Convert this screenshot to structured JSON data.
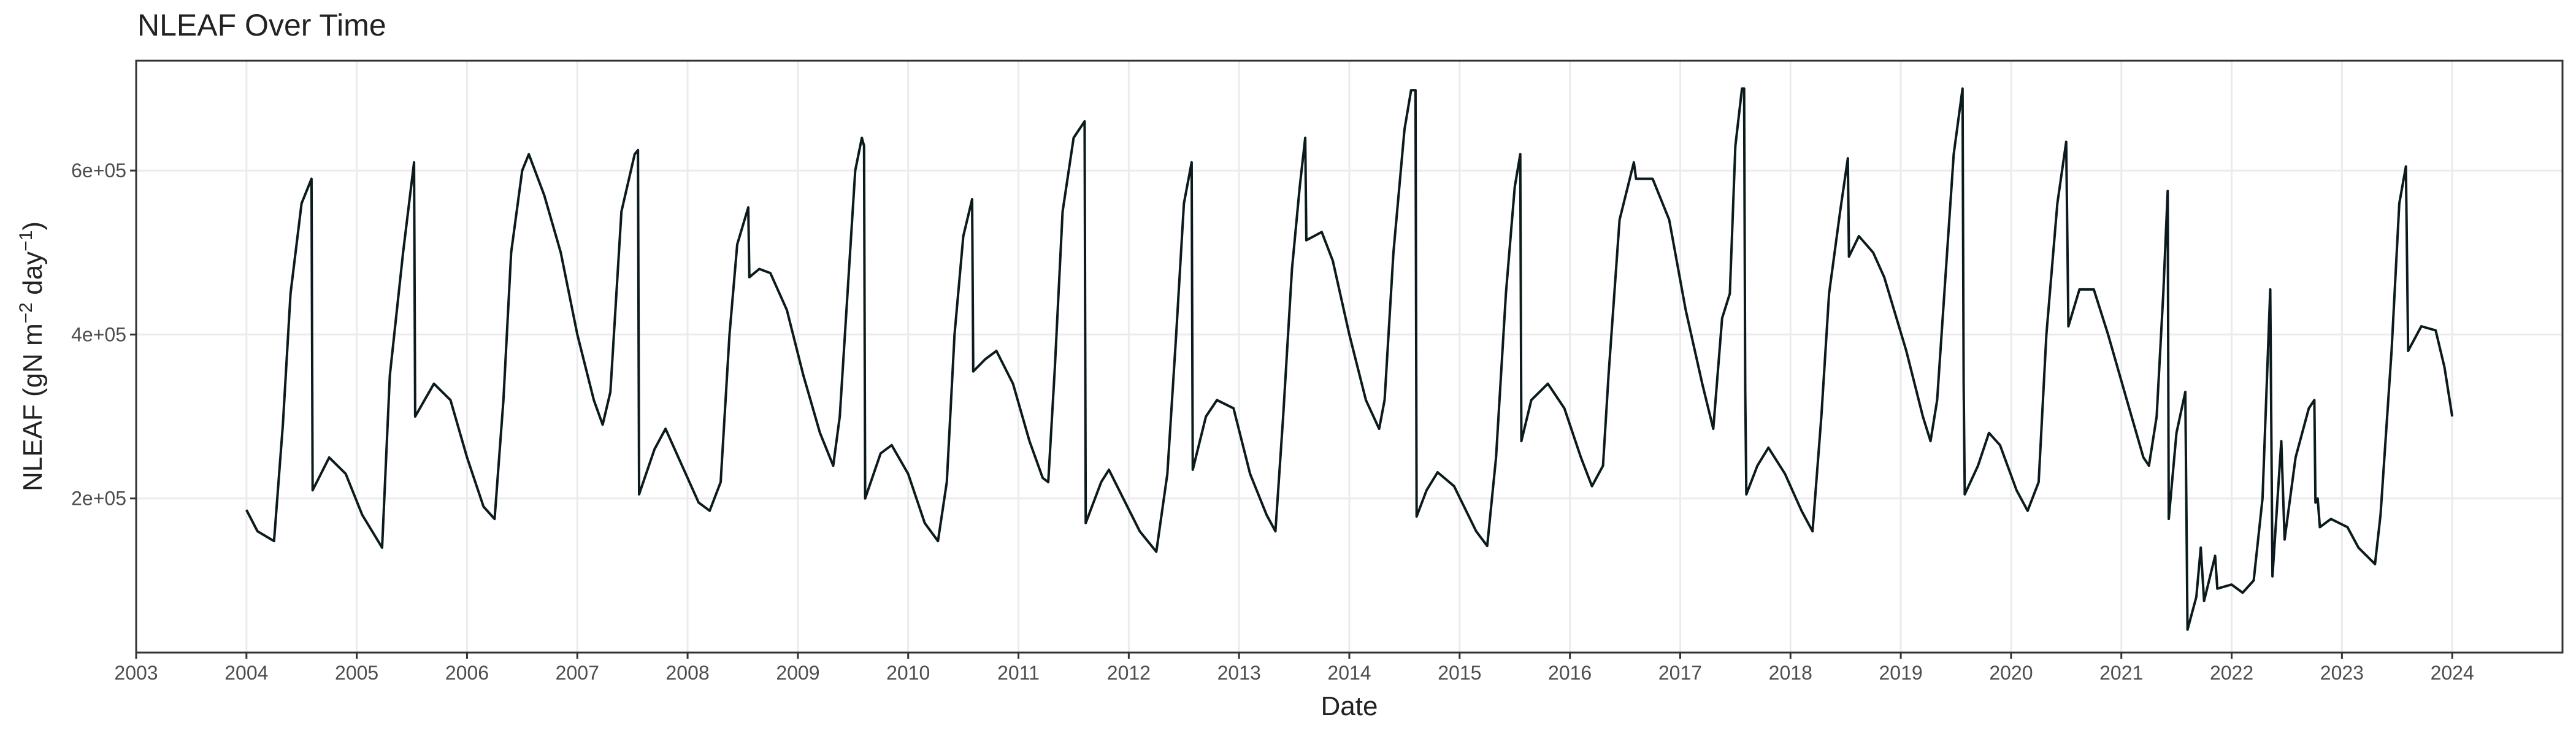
{
  "chart_data": {
    "type": "line",
    "title": "NLEAF Over Time",
    "x_label": "Date",
    "y_label": [
      "NLEAF (gN m",
      "−2",
      " day",
      "−1",
      ")"
    ],
    "color": "#0b1a1c",
    "grid": true,
    "xlim": [
      2003,
      2025
    ],
    "xticks": [
      2003,
      2004,
      2005,
      2006,
      2007,
      2008,
      2009,
      2010,
      2011,
      2012,
      2013,
      2014,
      2015,
      2016,
      2017,
      2018,
      2019,
      2020,
      2021,
      2022,
      2023,
      2024
    ],
    "ylim": [
      12000,
      734000
    ],
    "yticks": [
      {
        "value": 200000,
        "label": "2e+05"
      },
      {
        "value": 400000,
        "label": "4e+05"
      },
      {
        "value": 600000,
        "label": "6e+05"
      }
    ],
    "x": [
      2004.0,
      2004.1,
      2004.2,
      2004.25,
      2004.33,
      2004.4,
      2004.5,
      2004.59,
      2004.6,
      2004.75,
      2004.9,
      2005.05,
      2005.23,
      2005.3,
      2005.42,
      2005.52,
      2005.53,
      2005.7,
      2005.85,
      2006.0,
      2006.15,
      2006.25,
      2006.33,
      2006.4,
      2006.5,
      2006.56,
      2006.7,
      2006.85,
      2007.0,
      2007.15,
      2007.23,
      2007.3,
      2007.4,
      2007.52,
      2007.55,
      2007.56,
      2007.7,
      2007.8,
      2007.95,
      2008.1,
      2008.2,
      2008.3,
      2008.38,
      2008.45,
      2008.55,
      2008.56,
      2008.65,
      2008.75,
      2008.9,
      2009.05,
      2009.2,
      2009.32,
      2009.38,
      2009.45,
      2009.52,
      2009.58,
      2009.6,
      2009.61,
      2009.75,
      2009.85,
      2010.0,
      2010.15,
      2010.27,
      2010.35,
      2010.42,
      2010.5,
      2010.58,
      2010.59,
      2010.7,
      2010.8,
      2010.95,
      2011.1,
      2011.22,
      2011.27,
      2011.33,
      2011.4,
      2011.5,
      2011.6,
      2011.61,
      2011.75,
      2011.82,
      2011.95,
      2012.1,
      2012.25,
      2012.35,
      2012.43,
      2012.5,
      2012.57,
      2012.58,
      2012.7,
      2012.8,
      2012.95,
      2013.1,
      2013.25,
      2013.33,
      2013.4,
      2013.48,
      2013.55,
      2013.6,
      2013.61,
      2013.75,
      2013.85,
      2014.0,
      2014.15,
      2014.27,
      2014.32,
      2014.4,
      2014.5,
      2014.56,
      2014.6,
      2014.61,
      2014.7,
      2014.8,
      2014.95,
      2015.15,
      2015.25,
      2015.33,
      2015.42,
      2015.5,
      2015.55,
      2015.56,
      2015.65,
      2015.8,
      2015.95,
      2016.1,
      2016.2,
      2016.3,
      2016.35,
      2016.45,
      2016.58,
      2016.6,
      2016.75,
      2016.9,
      2017.05,
      2017.2,
      2017.3,
      2017.38,
      2017.45,
      2017.5,
      2017.56,
      2017.58,
      2017.59,
      2017.6,
      2017.7,
      2017.8,
      2017.95,
      2018.1,
      2018.2,
      2018.28,
      2018.35,
      2018.45,
      2018.52,
      2018.53,
      2018.62,
      2018.75,
      2018.85,
      2019.05,
      2019.2,
      2019.27,
      2019.33,
      2019.4,
      2019.48,
      2019.56,
      2019.57,
      2019.58,
      2019.7,
      2019.8,
      2019.9,
      2020.05,
      2020.15,
      2020.25,
      2020.32,
      2020.42,
      2020.5,
      2020.52,
      2020.62,
      2020.75,
      2020.88,
      2021.05,
      2021.2,
      2021.25,
      2021.32,
      2021.38,
      2021.42,
      2021.43,
      2021.5,
      2021.58,
      2021.6,
      2021.68,
      2021.72,
      2021.75,
      2021.85,
      2021.87,
      2022.0,
      2022.1,
      2022.2,
      2022.28,
      2022.35,
      2022.37,
      2022.45,
      2022.48,
      2022.58,
      2022.7,
      2022.75,
      2022.76,
      2022.78,
      2022.8,
      2022.9,
      2023.05,
      2023.15,
      2023.3,
      2023.35,
      2023.45,
      2023.52,
      2023.58,
      2023.6,
      2023.72,
      2023.85,
      2023.93,
      2024.0
    ],
    "values": [
      186000,
      160000,
      152000,
      148000,
      290000,
      450000,
      560000,
      590000,
      210000,
      250000,
      230000,
      180000,
      140000,
      350000,
      500000,
      610000,
      300000,
      340000,
      320000,
      250000,
      190000,
      175000,
      320000,
      500000,
      600000,
      620000,
      570000,
      500000,
      400000,
      320000,
      290000,
      330000,
      550000,
      620000,
      625000,
      205000,
      260000,
      285000,
      240000,
      195000,
      185000,
      220000,
      400000,
      510000,
      555000,
      470000,
      480000,
      475000,
      430000,
      350000,
      280000,
      240000,
      300000,
      450000,
      600000,
      640000,
      630000,
      200000,
      255000,
      265000,
      230000,
      170000,
      148000,
      220000,
      400000,
      520000,
      565000,
      355000,
      370000,
      380000,
      340000,
      270000,
      225000,
      220000,
      360000,
      550000,
      640000,
      660000,
      170000,
      220000,
      235000,
      200000,
      160000,
      135000,
      230000,
      400000,
      560000,
      610000,
      235000,
      300000,
      320000,
      310000,
      230000,
      180000,
      160000,
      300000,
      480000,
      580000,
      640000,
      515000,
      525000,
      490000,
      400000,
      320000,
      285000,
      320000,
      500000,
      650000,
      698000,
      698000,
      178000,
      210000,
      232000,
      215000,
      160000,
      142000,
      250000,
      450000,
      580000,
      620000,
      270000,
      320000,
      340000,
      310000,
      250000,
      215000,
      240000,
      350000,
      540000,
      610000,
      590000,
      590000,
      540000,
      430000,
      340000,
      285000,
      420000,
      450000,
      630000,
      700000,
      700000,
      330000,
      205000,
      240000,
      262000,
      230000,
      185000,
      160000,
      300000,
      450000,
      550000,
      615000,
      495000,
      520000,
      500000,
      470000,
      380000,
      300000,
      270000,
      320000,
      460000,
      620000,
      700000,
      340000,
      205000,
      240000,
      280000,
      265000,
      210000,
      185000,
      220000,
      400000,
      560000,
      635000,
      410000,
      455000,
      455000,
      400000,
      320000,
      250000,
      240000,
      300000,
      450000,
      575000,
      175000,
      280000,
      330000,
      40000,
      80000,
      140000,
      75000,
      130000,
      90000,
      95000,
      85000,
      100000,
      200000,
      455000,
      105000,
      270000,
      150000,
      250000,
      310000,
      320000,
      195000,
      200000,
      165000,
      175000,
      165000,
      140000,
      120000,
      180000,
      380000,
      560000,
      605000,
      380000,
      410000,
      405000,
      360000,
      300000
    ]
  }
}
